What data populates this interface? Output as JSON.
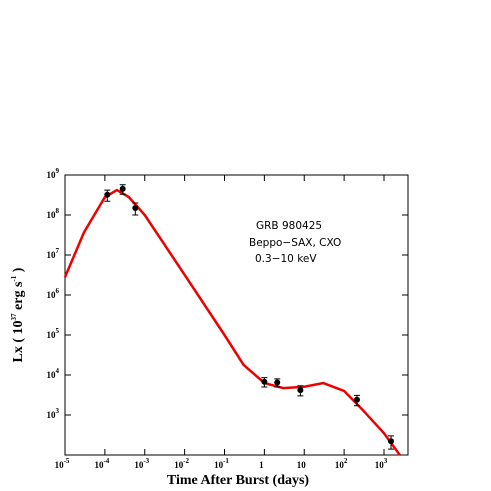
{
  "chart_data": {
    "type": "scatter",
    "xlabel": "Time After Burst (days)",
    "ylabel_parts": [
      "Lx ( 10",
      "37",
      " erg s",
      "-1",
      " )"
    ],
    "annotations": [
      "GRB 980425",
      "Beppo−SAX, CXO",
      "0.3−10 keV"
    ],
    "xscale": "log",
    "yscale": "log",
    "xlim": [
      1e-05,
      4000
    ],
    "ylim": [
      100,
      1000000000
    ],
    "xticks": [
      {
        "value": 1e-05,
        "label": "10",
        "power": "-5"
      },
      {
        "value": 0.0001,
        "label": "10",
        "power": "-4"
      },
      {
        "value": 0.001,
        "label": "10",
        "power": "-3"
      },
      {
        "value": 0.01,
        "label": "10",
        "power": "-2"
      },
      {
        "value": 0.1,
        "label": "10",
        "power": "-1"
      },
      {
        "value": 1,
        "label": "1"
      },
      {
        "value": 10,
        "label": "10"
      },
      {
        "value": 100,
        "label": "10",
        "power": "2"
      },
      {
        "value": 1000,
        "label": "10",
        "power": "3"
      }
    ],
    "yticks": [
      {
        "value": 1000,
        "label": "10",
        "power": "3"
      },
      {
        "value": 10000,
        "label": "10",
        "power": "4"
      },
      {
        "value": 100000,
        "label": "10",
        "power": "5"
      },
      {
        "value": 1000000,
        "label": "10",
        "power": "6"
      },
      {
        "value": 10000000,
        "label": "10",
        "power": "7"
      },
      {
        "value": 100000000,
        "label": "10",
        "power": "8"
      },
      {
        "value": 1000000000,
        "label": "10",
        "power": "9"
      }
    ],
    "series": [
      {
        "style": "line",
        "color": "#ee0000",
        "x": [
          1e-05,
          3e-05,
          0.0001,
          0.0002,
          0.0004,
          0.001,
          0.01,
          0.1,
          0.3,
          1,
          3,
          10,
          30,
          100,
          300,
          1000,
          2500
        ],
        "values": [
          2800000,
          37000000,
          280000000,
          420000000,
          280000000,
          100000000,
          3200000,
          100000,
          18000,
          6300,
          4700,
          5100,
          6300,
          4000,
          1300,
          350,
          100
        ]
      },
      {
        "style": "points",
        "color": "#000000",
        "x": [
          0.000115,
          0.00028,
          0.00058,
          1.0,
          2.1,
          8,
          210,
          1500
        ],
        "values": [
          320000000,
          450000000,
          150000000,
          6800,
          6500,
          4200,
          2400,
          220
        ],
        "errors": [
          100000000,
          120000000,
          50000000,
          1800,
          1500,
          1200,
          700,
          80
        ]
      }
    ]
  }
}
